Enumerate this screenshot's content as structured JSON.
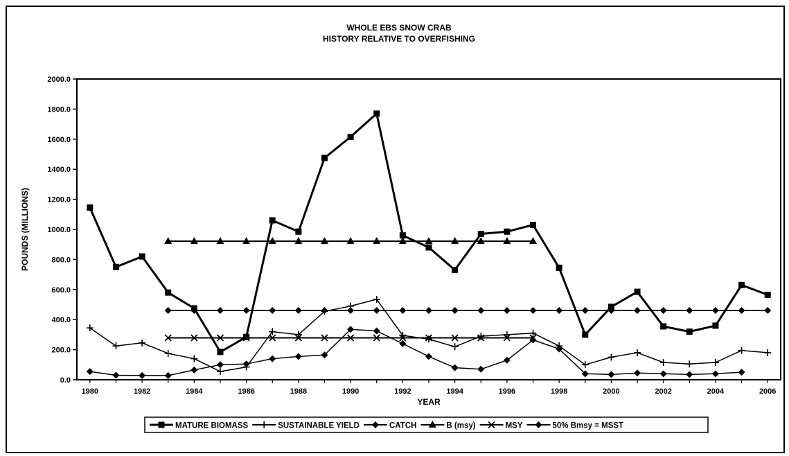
{
  "chart_data": {
    "type": "line",
    "title": "WHOLE EBS SNOW CRAB",
    "subtitle": "HISTORY RELATIVE TO OVERFISHING",
    "xlabel": "YEAR",
    "ylabel": "POUNDS (MILLIONS)",
    "xlim": [
      1980,
      2006
    ],
    "ylim": [
      0,
      2000
    ],
    "x_ticks": [
      "1980",
      "1982",
      "1984",
      "1986",
      "1988",
      "1990",
      "1992",
      "1994",
      "1996",
      "1998",
      "2000",
      "2002",
      "2004",
      "2006"
    ],
    "y_ticks": [
      "0.0",
      "200.0",
      "400.0",
      "600.0",
      "800.0",
      "1000.0",
      "1200.0",
      "1400.0",
      "1600.0",
      "1800.0",
      "2000.0"
    ],
    "grid": false,
    "legend_position": "bottom",
    "series": [
      {
        "name": "MATURE BIOMASS",
        "marker": "square",
        "width": 3,
        "x": [
          1980,
          1981,
          1982,
          1983,
          1984,
          1985,
          1986,
          1987,
          1988,
          1989,
          1990,
          1991,
          1992,
          1993,
          1994,
          1995,
          1996,
          1997,
          1998,
          1999,
          2000,
          2001,
          2002,
          2003,
          2004,
          2005,
          2006
        ],
        "y": [
          1145,
          750,
          820,
          580,
          475,
          185,
          285,
          1060,
          985,
          1475,
          1615,
          1770,
          960,
          880,
          730,
          970,
          985,
          1030,
          745,
          300,
          485,
          585,
          355,
          320,
          360,
          630,
          565
        ]
      },
      {
        "name": "SUSTAINABLE YIELD",
        "marker": "plus",
        "width": 1.5,
        "x": [
          1980,
          1981,
          1982,
          1983,
          1984,
          1985,
          1986,
          1987,
          1988,
          1989,
          1990,
          1991,
          1992,
          1993,
          1994,
          1995,
          1996,
          1997,
          1998,
          1999,
          2000,
          2001,
          2002,
          2003,
          2004,
          2005,
          2006
        ],
        "y": [
          345,
          225,
          245,
          175,
          140,
          55,
          85,
          320,
          300,
          455,
          490,
          535,
          295,
          270,
          220,
          290,
          300,
          310,
          225,
          100,
          150,
          180,
          115,
          105,
          115,
          195,
          180
        ]
      },
      {
        "name": "CATCH",
        "marker": "diamond",
        "width": 1.5,
        "x": [
          1980,
          1981,
          1982,
          1983,
          1984,
          1985,
          1986,
          1987,
          1988,
          1989,
          1990,
          1991,
          1992,
          1993,
          1994,
          1995,
          1996,
          1997,
          1998,
          1999,
          2000,
          2001,
          2002,
          2003,
          2004,
          2005
        ],
        "y": [
          55,
          30,
          28,
          28,
          65,
          100,
          105,
          140,
          155,
          165,
          335,
          325,
          240,
          155,
          80,
          70,
          130,
          265,
          205,
          40,
          35,
          45,
          40,
          35,
          40,
          50
        ]
      },
      {
        "name": "B (msy)",
        "marker": "triangle",
        "width": 2,
        "x": [
          1983,
          1984,
          1985,
          1986,
          1987,
          1988,
          1989,
          1990,
          1991,
          1992,
          1993,
          1994,
          1995,
          1996,
          1997
        ],
        "y": [
          921.6,
          921.6,
          921.6,
          921.6,
          921.6,
          921.6,
          921.6,
          921.6,
          921.6,
          921.6,
          921.6,
          921.6,
          921.6,
          921.6,
          921.6
        ]
      },
      {
        "name": "MSY",
        "marker": "x",
        "width": 2,
        "x": [
          1983,
          1984,
          1985,
          1986,
          1987,
          1988,
          1989,
          1990,
          1991,
          1992,
          1993,
          1994,
          1995,
          1996,
          1997
        ],
        "y": [
          279,
          279,
          279,
          279,
          279,
          279,
          279,
          279,
          279,
          279,
          279,
          279,
          279,
          279,
          279
        ]
      },
      {
        "name": "50% Bmsy = MSST",
        "marker": "diamond",
        "width": 2,
        "x": [
          1983,
          1984,
          1985,
          1986,
          1987,
          1988,
          1989,
          1990,
          1991,
          1992,
          1993,
          1994,
          1995,
          1996,
          1997,
          1998,
          1999,
          2000,
          2001,
          2002,
          2003,
          2004,
          2005,
          2006
        ],
        "y": [
          460.8,
          460.8,
          460.8,
          460.8,
          460.8,
          460.8,
          460.8,
          460.8,
          460.8,
          460.8,
          460.8,
          460.8,
          460.8,
          460.8,
          460.8,
          460.8,
          460.8,
          460.8,
          460.8,
          460.8,
          460.8,
          460.8,
          460.8,
          460.8
        ]
      }
    ]
  }
}
